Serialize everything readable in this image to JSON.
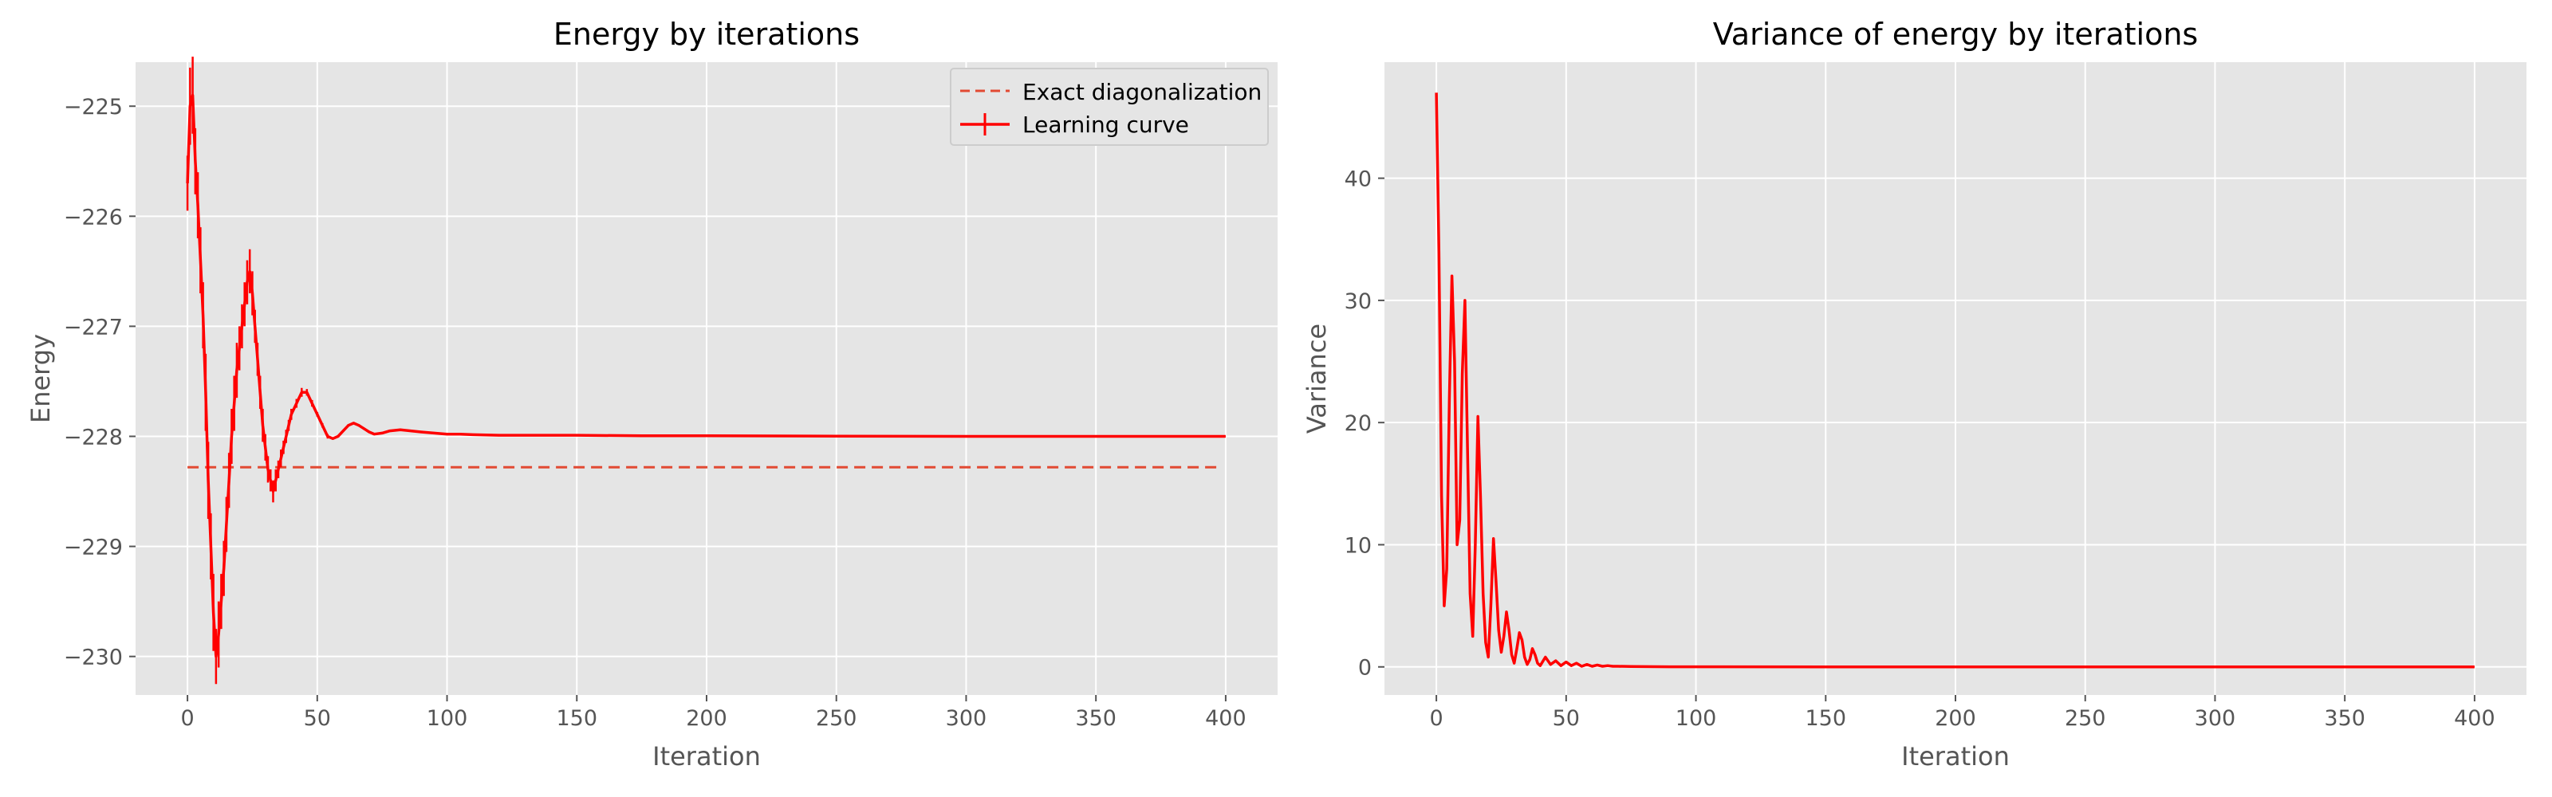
{
  "chart_data": [
    {
      "type": "line",
      "title": "Energy by iterations",
      "xlabel": "Iteration",
      "ylabel": "Energy",
      "xlim": [
        -20,
        420
      ],
      "ylim": [
        -230.35,
        -224.6
      ],
      "xticks": [
        0,
        50,
        100,
        150,
        200,
        250,
        300,
        350,
        400
      ],
      "yticks": [
        -230,
        -229,
        -228,
        -227,
        -226,
        -225
      ],
      "xtick_labels": [
        "0",
        "50",
        "100",
        "150",
        "200",
        "250",
        "300",
        "350",
        "400"
      ],
      "ytick_labels": [
        "−230",
        "−229",
        "−228",
        "−227",
        "−226",
        "−225"
      ],
      "grid": true,
      "legend_position": "top-right",
      "legend": [
        "Exact diagonalization",
        "Learning curve"
      ],
      "series": [
        {
          "name": "Exact diagonalization",
          "style": "dashed",
          "color": "#e24a33",
          "x": [
            0,
            398
          ],
          "y": [
            -228.28,
            -228.28
          ]
        },
        {
          "name": "Learning curve",
          "style": "solid-errorbar",
          "color": "#ff0000",
          "x": [
            0,
            1,
            2,
            3,
            4,
            5,
            6,
            7,
            8,
            9,
            10,
            11,
            12,
            13,
            14,
            15,
            16,
            17,
            18,
            19,
            20,
            21,
            22,
            23,
            24,
            25,
            26,
            27,
            28,
            29,
            30,
            31,
            32,
            33,
            34,
            35,
            36,
            37,
            38,
            39,
            40,
            42,
            44,
            46,
            48,
            50,
            52,
            54,
            56,
            58,
            60,
            62,
            64,
            66,
            68,
            70,
            72,
            75,
            78,
            82,
            86,
            90,
            95,
            100,
            105,
            110,
            120,
            130,
            140,
            150,
            175,
            200,
            250,
            300,
            350,
            400
          ],
          "y": [
            -225.7,
            -225.0,
            -224.9,
            -225.5,
            -225.9,
            -226.4,
            -226.9,
            -227.6,
            -228.4,
            -229.0,
            -229.6,
            -230.0,
            -229.8,
            -229.5,
            -229.2,
            -228.8,
            -228.4,
            -228.0,
            -227.7,
            -227.4,
            -227.2,
            -227.0,
            -226.8,
            -226.6,
            -226.5,
            -226.7,
            -227.0,
            -227.3,
            -227.6,
            -227.9,
            -228.1,
            -228.3,
            -228.4,
            -228.5,
            -228.4,
            -228.3,
            -228.2,
            -228.1,
            -228.0,
            -227.9,
            -227.8,
            -227.7,
            -227.6,
            -227.6,
            -227.7,
            -227.8,
            -227.9,
            -228.0,
            -228.02,
            -228.0,
            -227.95,
            -227.9,
            -227.88,
            -227.9,
            -227.93,
            -227.96,
            -227.98,
            -227.97,
            -227.95,
            -227.94,
            -227.95,
            -227.96,
            -227.97,
            -227.98,
            -227.98,
            -227.985,
            -227.99,
            -227.99,
            -227.99,
            -227.99,
            -227.995,
            -227.995,
            -227.998,
            -228.0,
            -228.0,
            -228.0
          ],
          "err": [
            0.25,
            0.35,
            0.35,
            0.3,
            0.3,
            0.3,
            0.3,
            0.35,
            0.35,
            0.3,
            0.35,
            0.25,
            0.3,
            0.25,
            0.25,
            0.25,
            0.25,
            0.25,
            0.25,
            0.25,
            0.2,
            0.2,
            0.2,
            0.2,
            0.2,
            0.2,
            0.15,
            0.15,
            0.15,
            0.15,
            0.12,
            0.12,
            0.1,
            0.1,
            0.1,
            0.08,
            0.08,
            0.06,
            0.06,
            0.05,
            0.05,
            0.04,
            0.04,
            0.03,
            0.03,
            0.02,
            0.02,
            0.02,
            0.01,
            0.01,
            0.01,
            0.01,
            0.01,
            0.01,
            0.01,
            0.005,
            0.005,
            0.005,
            0.005,
            0.005,
            0.005,
            0.005,
            0.005,
            0.005,
            0.005,
            0.005,
            0.0,
            0.0,
            0.0,
            0.0,
            0.0,
            0.0,
            0.0,
            0.0,
            0.0,
            0.0
          ]
        }
      ]
    },
    {
      "type": "line",
      "title": "Variance of energy by iterations",
      "xlabel": "Iteration",
      "ylabel": "Variance",
      "xlim": [
        -20,
        420
      ],
      "ylim": [
        -2.3,
        49.5
      ],
      "xticks": [
        0,
        50,
        100,
        150,
        200,
        250,
        300,
        350,
        400
      ],
      "yticks": [
        0,
        10,
        20,
        30,
        40
      ],
      "xtick_labels": [
        "0",
        "50",
        "100",
        "150",
        "200",
        "250",
        "300",
        "350",
        "400"
      ],
      "ytick_labels": [
        "0",
        "10",
        "20",
        "30",
        "40"
      ],
      "grid": true,
      "series": [
        {
          "color": "#ff0000",
          "x": [
            0,
            1,
            2,
            3,
            4,
            5,
            6,
            7,
            8,
            9,
            10,
            11,
            12,
            13,
            14,
            15,
            16,
            17,
            18,
            19,
            20,
            21,
            22,
            23,
            24,
            25,
            26,
            27,
            28,
            29,
            30,
            31,
            32,
            33,
            34,
            35,
            36,
            37,
            38,
            39,
            40,
            42,
            44,
            46,
            48,
            50,
            52,
            54,
            56,
            58,
            60,
            62,
            64,
            66,
            68,
            70,
            75,
            80,
            90,
            100,
            150,
            200,
            250,
            300,
            350,
            400
          ],
          "y": [
            47.0,
            34.0,
            14.0,
            5.0,
            8.0,
            22.0,
            32.0,
            25.0,
            10.0,
            12.0,
            24.0,
            30.0,
            18.0,
            6.0,
            2.5,
            10.0,
            20.5,
            14.0,
            6.0,
            2.0,
            0.8,
            5.0,
            10.5,
            7.0,
            3.0,
            1.2,
            2.5,
            4.5,
            3.0,
            1.0,
            0.3,
            1.5,
            2.8,
            2.2,
            0.8,
            0.2,
            0.6,
            1.5,
            1.0,
            0.3,
            0.1,
            0.8,
            0.2,
            0.5,
            0.1,
            0.4,
            0.1,
            0.3,
            0.05,
            0.2,
            0.05,
            0.15,
            0.05,
            0.1,
            0.05,
            0.05,
            0.03,
            0.02,
            0.01,
            0.01,
            0.0,
            0.0,
            0.0,
            0.0,
            0.0,
            0.0
          ]
        }
      ]
    }
  ]
}
